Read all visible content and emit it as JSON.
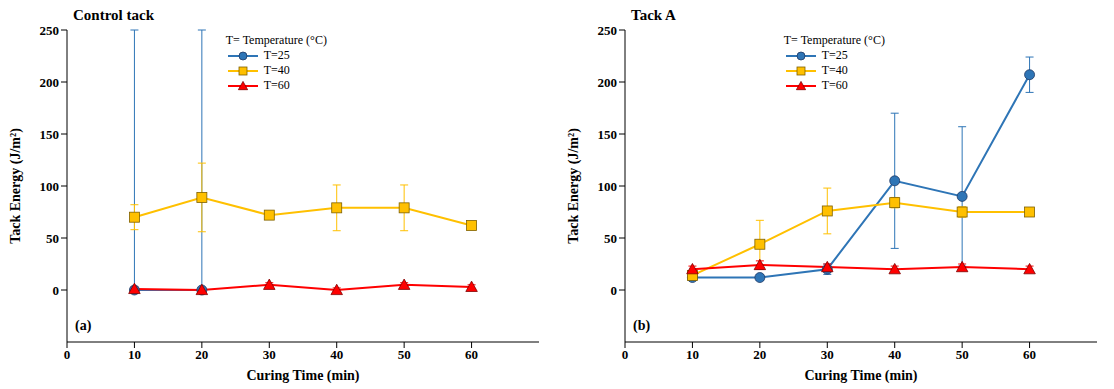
{
  "chart_data": [
    {
      "type": "line",
      "title": "Control tack",
      "annotation": "(a)",
      "x_label": "Curing Time (min)",
      "y_label": "Tack Energy (J/m²)",
      "legend": "top",
      "legend_title": "T= Temperature (°C)",
      "xlim": [
        0,
        70
      ],
      "xticks": [
        0,
        10,
        20,
        30,
        40,
        50,
        60
      ],
      "ylim": [
        -50,
        250
      ],
      "yticks": [
        0,
        50,
        100,
        150,
        200,
        250
      ],
      "x": [
        10,
        20,
        30,
        40,
        50,
        60
      ],
      "series": [
        {
          "name": "T=25",
          "color": "#2e75b6",
          "marker": "circle",
          "values": [
            0,
            0,
            null,
            null,
            null,
            null
          ],
          "errors": [
            [
              0,
              250
            ],
            [
              0,
              250
            ],
            null,
            null,
            null,
            null
          ]
        },
        {
          "name": "T=40",
          "color": "#ffc000",
          "marker": "square",
          "values": [
            70,
            89,
            72,
            79,
            79,
            62
          ],
          "errors": [
            [
              12,
              12
            ],
            [
              33,
              33
            ],
            [
              3,
              3
            ],
            [
              22,
              22
            ],
            [
              22,
              22
            ],
            [
              3,
              3
            ]
          ]
        },
        {
          "name": "T=60",
          "color": "#ff0000",
          "marker": "triangle",
          "values": [
            1,
            0,
            5,
            0,
            5,
            3
          ],
          "errors": [
            [
              2,
              2
            ],
            [
              2,
              2
            ],
            [
              2,
              2
            ],
            [
              2,
              2
            ],
            [
              2,
              2
            ],
            [
              2,
              2
            ]
          ]
        }
      ]
    },
    {
      "type": "line",
      "title": "Tack A",
      "annotation": "(b)",
      "x_label": "Curing Time (min)",
      "y_label": "Tack Energy (J/m²)",
      "legend": "top",
      "legend_title": "T= Temperature (°C)",
      "xlim": [
        0,
        70
      ],
      "xticks": [
        0,
        10,
        20,
        30,
        40,
        50,
        60
      ],
      "ylim": [
        -50,
        250
      ],
      "yticks": [
        0,
        50,
        100,
        150,
        200,
        250
      ],
      "x": [
        10,
        20,
        30,
        40,
        50,
        60
      ],
      "series": [
        {
          "name": "T=25",
          "color": "#2e75b6",
          "marker": "circle",
          "values": [
            12,
            12,
            20,
            105,
            90,
            207
          ],
          "errors": [
            [
              3,
              3
            ],
            [
              3,
              3
            ],
            [
              5,
              5
            ],
            [
              65,
              65
            ],
            [
              67,
              67
            ],
            [
              17,
              17
            ]
          ]
        },
        {
          "name": "T=40",
          "color": "#ffc000",
          "marker": "square",
          "values": [
            14,
            44,
            76,
            84,
            75,
            75
          ],
          "errors": [
            [
              3,
              3
            ],
            [
              23,
              23
            ],
            [
              22,
              22
            ],
            [
              5,
              5
            ],
            [
              5,
              5
            ],
            [
              3,
              3
            ]
          ]
        },
        {
          "name": "T=60",
          "color": "#ff0000",
          "marker": "triangle",
          "values": [
            20,
            24,
            22,
            20,
            22,
            20
          ],
          "errors": [
            [
              3,
              3
            ],
            [
              4,
              4
            ],
            [
              3,
              3
            ],
            [
              3,
              3
            ],
            [
              3,
              3
            ],
            [
              3,
              3
            ]
          ]
        }
      ]
    }
  ]
}
